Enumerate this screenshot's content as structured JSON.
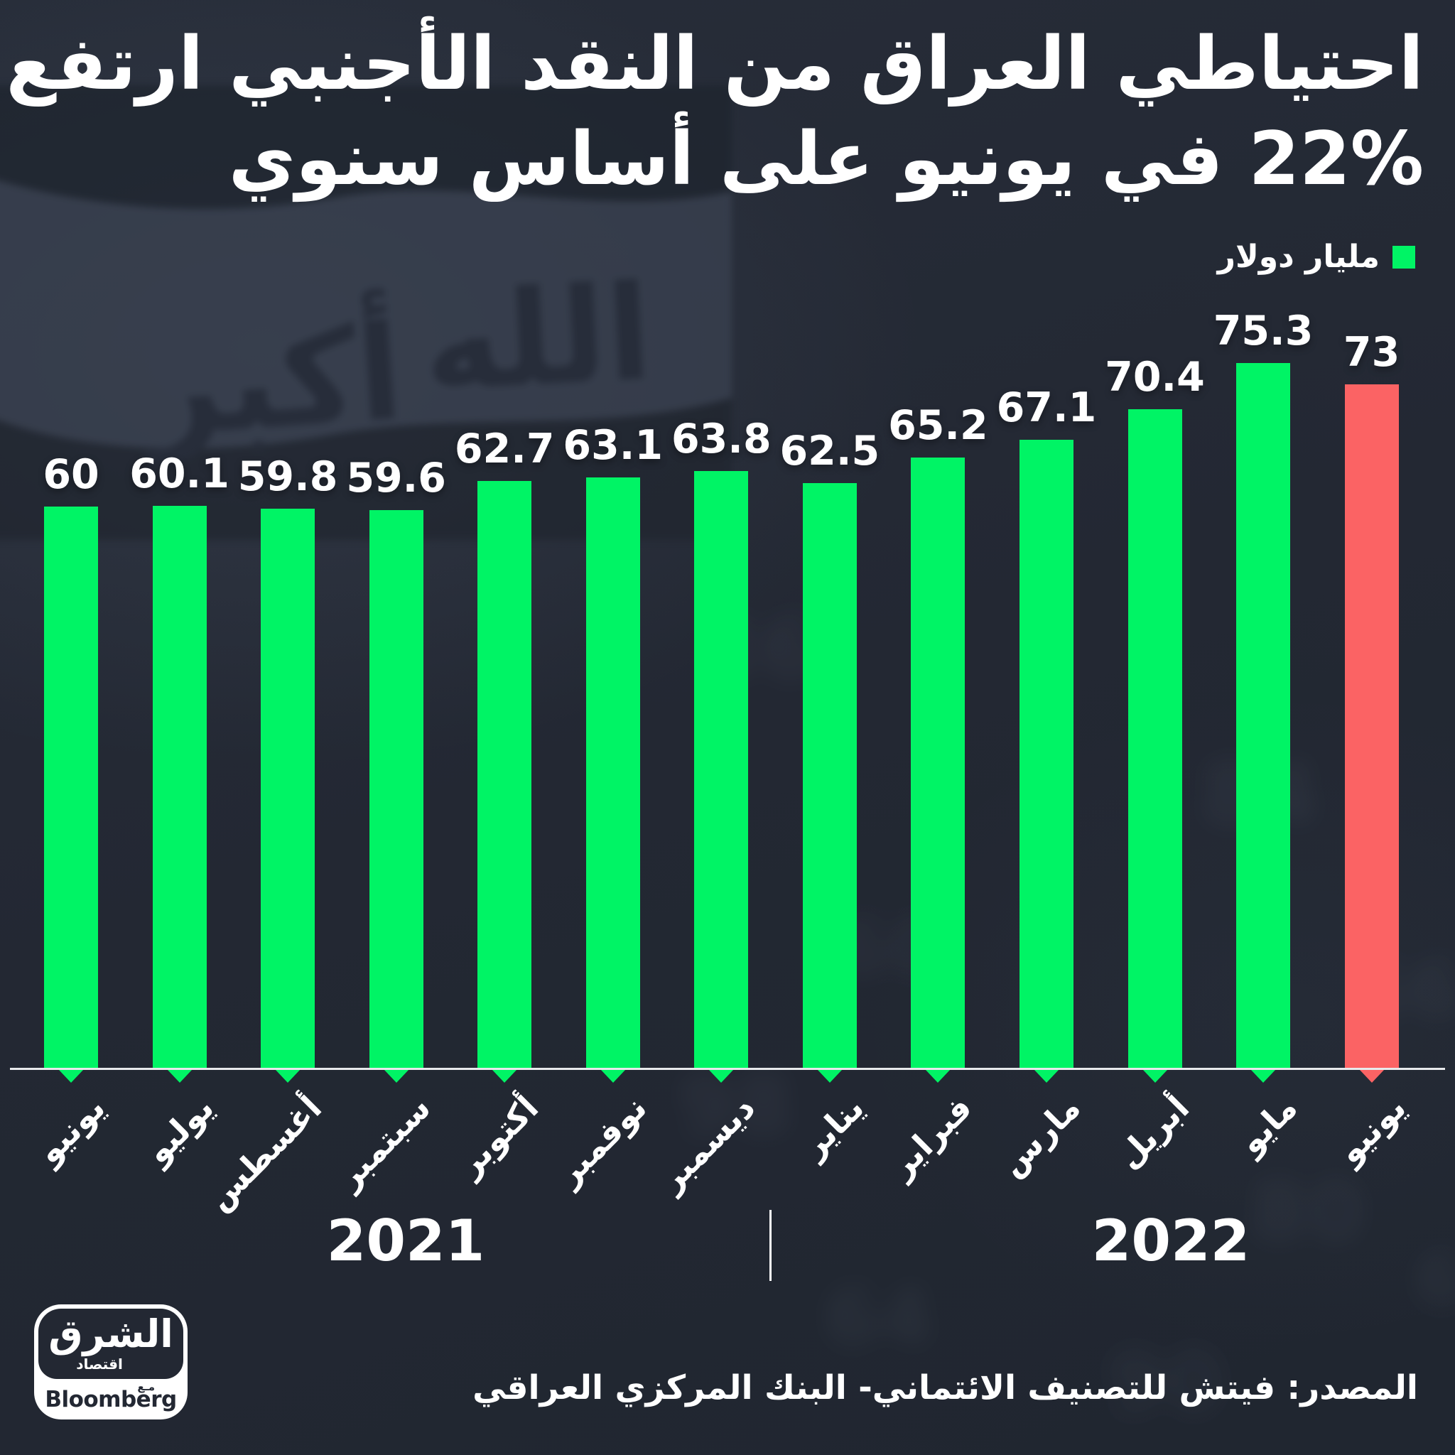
{
  "title": {
    "line1": "احتياطي العراق من النقد الأجنبي ارتفع",
    "line2": "22% في يونيو على أساس سنوي"
  },
  "legend": {
    "label": "مليار دولار",
    "swatch_color": "#00F465"
  },
  "chart_data": {
    "type": "bar",
    "title": "احتياطي العراق من النقد الأجنبي ارتفع 22% في يونيو على أساس سنوي",
    "unit": "مليار دولار",
    "categories": [
      "يونيو",
      "يوليو",
      "أغسطس",
      "سبتمبر",
      "أكتوبر",
      "نوفمبر",
      "ديسمبر",
      "يناير",
      "فبراير",
      "مارس",
      "أبريل",
      "مايو",
      "يونيو"
    ],
    "values": [
      60,
      60.1,
      59.8,
      59.6,
      62.7,
      63.1,
      63.8,
      62.5,
      65.2,
      67.1,
      70.4,
      75.3,
      73
    ],
    "value_labels": [
      "60",
      "60.1",
      "59.8",
      "59.6",
      "62.7",
      "63.1",
      "63.8",
      "62.5",
      "65.2",
      "67.1",
      "70.4",
      "75.3",
      "73"
    ],
    "bar_color": "#00F465",
    "highlight_index": 12,
    "highlight_color": "#FB6364",
    "ylim": [
      0,
      80
    ],
    "grid": false,
    "legend_position": "top-right",
    "year_labels": [
      "2021",
      "2022"
    ]
  },
  "footer": {
    "source": "المصدر: فيتش للتصنيف الائتماني- البنك المركزي العراقي"
  },
  "logo": {
    "wordmark": "الشرق",
    "sub": "اقتصاد",
    "with": "مـع",
    "partner": "Bloomberg"
  },
  "background": {
    "color": "#232833",
    "flag_words": [
      "الله",
      "أكبر"
    ],
    "ghost_digits": [
      "86",
      "60",
      "98",
      "84",
      "66",
      "80",
      "64",
      "90",
      "68"
    ]
  }
}
